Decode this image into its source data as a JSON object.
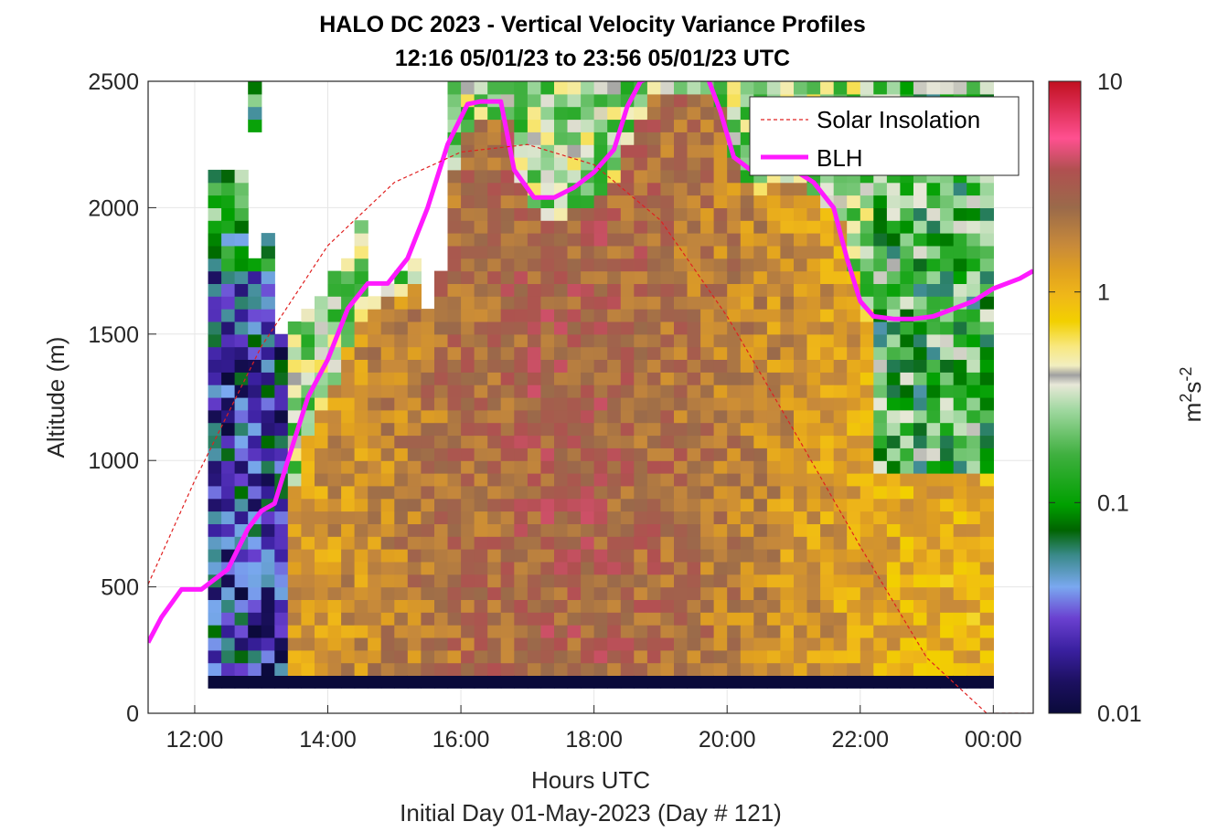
{
  "chart_data": {
    "type": "heatmap",
    "title": "HALO DC 2023 - Vertical Velocity Variance Profiles",
    "subtitle": "12:16 05/01/23 to 23:56 05/01/23  UTC",
    "xlabel": "Hours UTC",
    "xlabel2": "Initial Day 01-May-2023 (Day # 121)",
    "ylabel": "Altitude (m)",
    "xlim_hours": [
      11.3,
      24.6
    ],
    "ylim": [
      0,
      2500
    ],
    "x_ticks": [
      12,
      14,
      16,
      18,
      20,
      22,
      24
    ],
    "x_tick_labels": [
      "12:00",
      "14:00",
      "16:00",
      "18:00",
      "20:00",
      "22:00",
      "00:00"
    ],
    "y_ticks": [
      0,
      500,
      1000,
      1500,
      2000,
      2500
    ],
    "y_tick_labels": [
      "0",
      "500",
      "1000",
      "1500",
      "2000",
      "2500"
    ],
    "grid": true,
    "colorbar": {
      "scale": "log",
      "range": [
        0.01,
        10
      ],
      "ticks": [
        0.01,
        0.1,
        1,
        10
      ],
      "tick_labels": [
        "0.01",
        "0.1",
        "1",
        "10"
      ],
      "label": "m²s⁻²",
      "label_base": "m",
      "label_exp1": "2",
      "label_mid": "s",
      "label_exp2": "-2"
    },
    "legend": {
      "position": "top-right",
      "entries": [
        {
          "name": "Solar Insolation",
          "style": "dashed",
          "color": "#e02020"
        },
        {
          "name": "BLH",
          "style": "solid",
          "color": "#ff1aff"
        }
      ]
    },
    "series": [
      {
        "name": "BLH",
        "unit_x": "hours",
        "unit_y": "m",
        "x": [
          11.3,
          11.5,
          11.8,
          12.1,
          12.5,
          12.8,
          13.0,
          13.2,
          13.4,
          13.7,
          14.0,
          14.3,
          14.6,
          14.9,
          15.2,
          15.5,
          15.8,
          16.1,
          16.3,
          16.6,
          16.8,
          17.1,
          17.4,
          17.7,
          18.0,
          18.3,
          18.5,
          18.7,
          18.9,
          19.7,
          19.9,
          20.1,
          20.4,
          20.7,
          21.0,
          21.3,
          21.6,
          21.8,
          22.0,
          22.2,
          22.5,
          22.8,
          23.1,
          23.4,
          23.7,
          24.0,
          24.2,
          24.4,
          24.6
        ],
        "y": [
          280,
          380,
          490,
          490,
          570,
          730,
          800,
          830,
          1000,
          1250,
          1400,
          1600,
          1700,
          1700,
          1800,
          2000,
          2250,
          2410,
          2420,
          2420,
          2150,
          2040,
          2040,
          2080,
          2140,
          2230,
          2400,
          2500,
          2520,
          2520,
          2380,
          2200,
          2140,
          2200,
          2150,
          2100,
          2000,
          1800,
          1630,
          1570,
          1560,
          1560,
          1570,
          1600,
          1630,
          1680,
          1700,
          1720,
          1750
        ]
      },
      {
        "name": "Solar Insolation",
        "unit_x": "hours",
        "unit_y": "m-equivalent",
        "x": [
          11.3,
          12.0,
          13.0,
          14.0,
          15.0,
          16.0,
          17.0,
          18.0,
          19.0,
          20.0,
          21.0,
          22.0,
          23.0,
          23.9,
          24.1,
          24.6
        ],
        "y": [
          510,
          920,
          1450,
          1850,
          2100,
          2220,
          2250,
          2170,
          1950,
          1570,
          1120,
          660,
          220,
          0,
          0,
          0
        ]
      }
    ],
    "heatmap_regions": [
      {
        "name": "early-sparse-profiles",
        "x_range": [
          12.2,
          13.2
        ],
        "y_range": [
          150,
          2500
        ],
        "value_range": [
          0.01,
          0.15
        ],
        "dominant": "purple-blue-green"
      },
      {
        "name": "daytime-convective-core",
        "x_range": [
          13.2,
          22.0
        ],
        "y_range": [
          150,
          1900
        ],
        "value_range": [
          0.5,
          3
        ],
        "dominant": "orange-brown"
      },
      {
        "name": "afternoon-upper-layer",
        "x_range": [
          15.8,
          22.0
        ],
        "y_range": [
          1900,
          2500
        ],
        "value_range": [
          0.05,
          0.6
        ],
        "dominant": "green-cream"
      },
      {
        "name": "evening-residual-layer",
        "x_range": [
          22.0,
          24.0
        ],
        "y_range": [
          900,
          2500
        ],
        "value_range": [
          0.03,
          0.3
        ],
        "dominant": "green"
      },
      {
        "name": "evening-surface-layer",
        "x_range": [
          22.0,
          24.0
        ],
        "y_range": [
          150,
          900
        ],
        "value_range": [
          0.5,
          2
        ],
        "dominant": "orange"
      },
      {
        "name": "lowest-range-gate",
        "x_range": [
          12.2,
          24.0
        ],
        "y_range": [
          100,
          150
        ],
        "value_range": [
          0.01,
          0.01
        ],
        "dominant": "navy"
      }
    ]
  }
}
